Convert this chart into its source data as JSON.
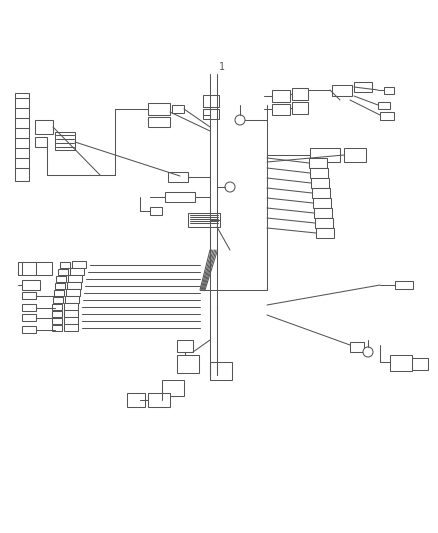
{
  "bg": "#ffffff",
  "lc": "#555555",
  "lw": 0.75,
  "fw": 4.38,
  "fh": 5.33,
  "dpi": 100
}
